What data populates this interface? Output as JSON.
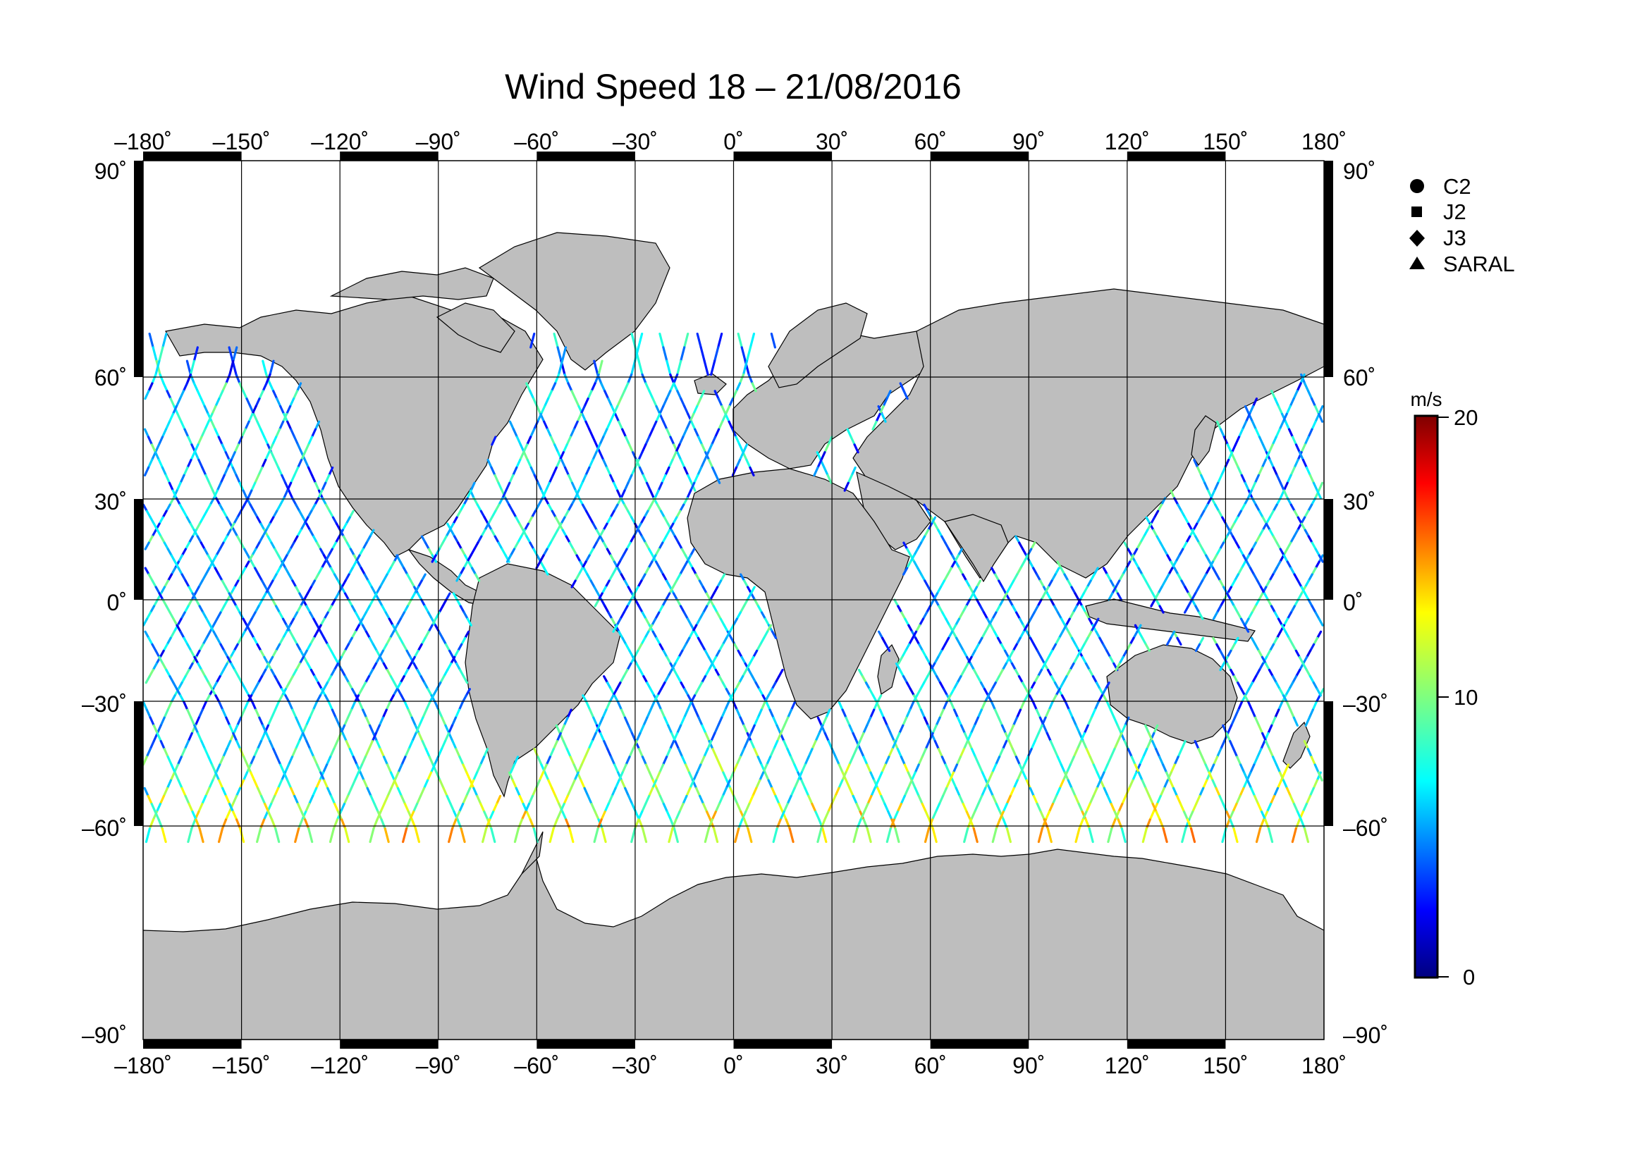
{
  "title": "Wind Speed 18 – 21/08/2016",
  "map": {
    "projection": "equirectangular",
    "lon_range": [
      -180,
      180
    ],
    "lat_range": [
      -90,
      90
    ],
    "lon_ticks": [
      "–180˚",
      "–150˚",
      "–120˚",
      "–90˚",
      "–60˚",
      "–30˚",
      "0˚",
      "30˚",
      "60˚",
      "90˚",
      "120˚",
      "150˚",
      "180˚"
    ],
    "lat_ticks_left": [
      "90˚",
      "60˚",
      "30˚",
      "0˚",
      "–30˚",
      "–60˚",
      "–90˚"
    ],
    "lat_ticks_right": [
      "90˚",
      "60˚",
      "30˚",
      "0˚",
      "–30˚",
      "–60˚",
      "–90˚"
    ],
    "land_color": "#bebebe",
    "ocean_color": "#ffffff",
    "grid": true
  },
  "legend": {
    "items": [
      {
        "label": "C2",
        "symbol": "circle"
      },
      {
        "label": "J2",
        "symbol": "square"
      },
      {
        "label": "J3",
        "symbol": "diamond"
      },
      {
        "label": "SARAL",
        "symbol": "triangle"
      }
    ]
  },
  "colorbar": {
    "unit": "m/s",
    "min": 0,
    "max": 20,
    "tick_labels": [
      "20",
      "10",
      "0"
    ],
    "tick_values": [
      20,
      10,
      0
    ],
    "colormap": "jet",
    "colors": [
      "#00007f",
      "#0000ff",
      "#007fff",
      "#00ffff",
      "#7fff7f",
      "#ffff00",
      "#ff7f00",
      "#ff0000",
      "#7f0000"
    ]
  },
  "chart_data": {
    "type": "scatter",
    "title": "Wind Speed 18 – 21/08/2016",
    "xlabel": "",
    "ylabel": "",
    "xlim": [
      -180,
      180
    ],
    "ylim": [
      -90,
      90
    ],
    "value_range": [
      0,
      20
    ],
    "value_unit": "m/s",
    "series": [
      {
        "name": "C2"
      },
      {
        "name": "J2"
      },
      {
        "name": "J3"
      },
      {
        "name": "SARAL"
      }
    ]
  }
}
